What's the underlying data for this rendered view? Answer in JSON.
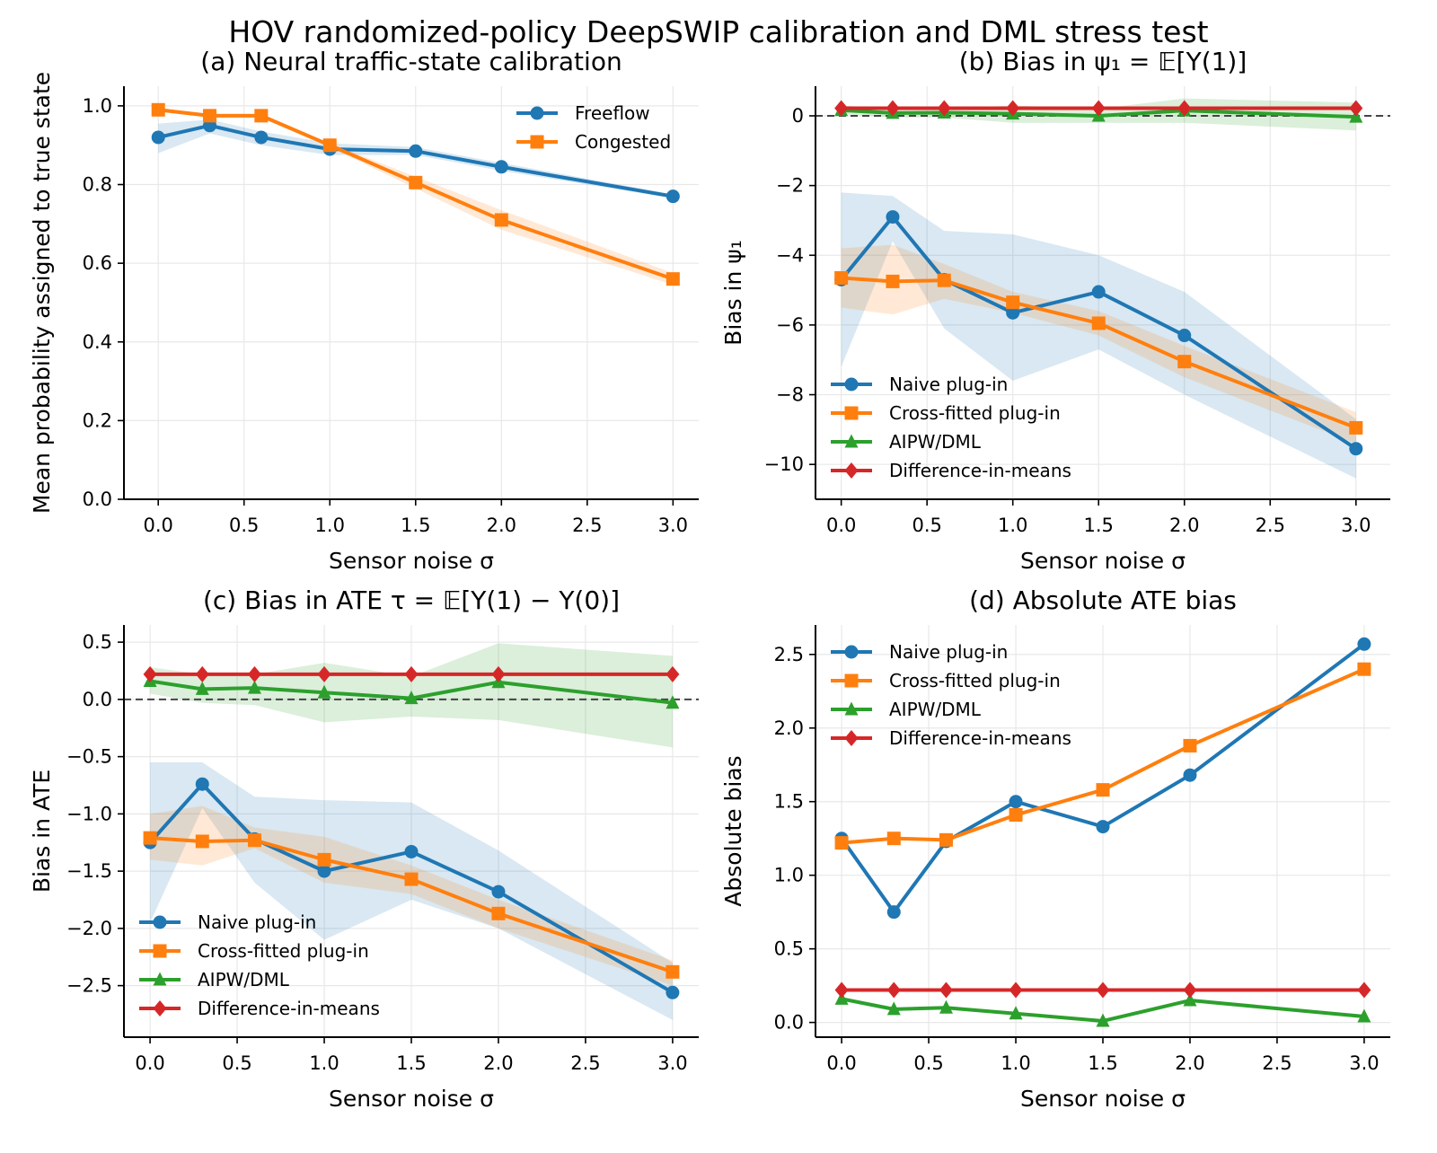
{
  "figure": {
    "suptitle": "HOV randomized-policy DeepSWIP calibration and DML stress test"
  },
  "colors": {
    "freeflow": "#1f77b4",
    "congested": "#ff7f0e",
    "naive": "#1f77b4",
    "crossfit": "#ff7f0e",
    "aipw": "#2ca02c",
    "dim": "#d62728",
    "grid": "#e8e8e8",
    "zero_line": "#444444"
  },
  "chart_data": [
    {
      "id": "a",
      "type": "line",
      "title": "(a) Neural traffic-state calibration",
      "xlabel": "Sensor noise σ",
      "ylabel": "Mean probability assigned to true state",
      "xlim": [
        -0.2,
        3.15
      ],
      "ylim": [
        0.0,
        1.05
      ],
      "xticks": [
        0.0,
        0.5,
        1.0,
        1.5,
        2.0,
        2.5,
        3.0
      ],
      "yticks": [
        0.0,
        0.2,
        0.4,
        0.6,
        0.8,
        1.0
      ],
      "xtick_labels": [
        "0.0",
        "0.5",
        "1.0",
        "1.5",
        "2.0",
        "2.5",
        "3.0"
      ],
      "ytick_labels": [
        "0.0",
        "0.2",
        "0.4",
        "0.6",
        "0.8",
        "1.0"
      ],
      "grid": true,
      "zero_line": false,
      "legend_position": "top-right",
      "x": [
        0.0,
        0.3,
        0.6,
        1.0,
        1.5,
        2.0,
        3.0
      ],
      "series": [
        {
          "name": "Freeflow",
          "color_key": "freeflow",
          "marker": "circle",
          "values": [
            0.92,
            0.95,
            0.92,
            0.89,
            0.885,
            0.845,
            0.77
          ],
          "band_lower": [
            0.88,
            0.93,
            0.9,
            0.875,
            0.875,
            0.835,
            0.765
          ],
          "band_upper": [
            0.955,
            0.965,
            0.935,
            0.905,
            0.895,
            0.855,
            0.775
          ]
        },
        {
          "name": "Congested",
          "color_key": "congested",
          "marker": "square",
          "values": [
            0.99,
            0.975,
            0.975,
            0.9,
            0.805,
            0.71,
            0.56
          ],
          "band_lower": [
            0.985,
            0.97,
            0.97,
            0.895,
            0.79,
            0.685,
            0.545
          ],
          "band_upper": [
            0.995,
            0.98,
            0.98,
            0.905,
            0.82,
            0.735,
            0.575
          ]
        }
      ]
    },
    {
      "id": "b",
      "type": "line",
      "title": "(b) Bias in ψ₁ = 𝔼[Y(1)]",
      "xlabel": "Sensor noise σ",
      "ylabel": "Bias in ψ₁",
      "xlim": [
        -0.15,
        3.2
      ],
      "ylim": [
        -11.0,
        0.85
      ],
      "xticks": [
        0.0,
        0.5,
        1.0,
        1.5,
        2.0,
        2.5,
        3.0
      ],
      "yticks": [
        -10,
        -8,
        -6,
        -4,
        -2,
        0
      ],
      "xtick_labels": [
        "0.0",
        "0.5",
        "1.0",
        "1.5",
        "2.0",
        "2.5",
        "3.0"
      ],
      "ytick_labels": [
        "−10",
        "−8",
        "−6",
        "−4",
        "−2",
        "0"
      ],
      "grid": true,
      "zero_line": true,
      "legend_position": "bottom-left",
      "x": [
        0.0,
        0.3,
        0.6,
        1.0,
        1.5,
        2.0,
        3.0
      ],
      "series": [
        {
          "name": "Naive plug-in",
          "color_key": "naive",
          "marker": "circle",
          "values": [
            -4.7,
            -2.9,
            -4.7,
            -5.65,
            -5.05,
            -6.3,
            -9.55
          ],
          "band_lower": [
            -7.2,
            -3.6,
            -6.1,
            -7.6,
            -6.7,
            -8.0,
            -10.4
          ],
          "band_upper": [
            -2.2,
            -2.3,
            -3.3,
            -3.4,
            -4.0,
            -5.05,
            -8.7
          ]
        },
        {
          "name": "Cross-fitted plug-in",
          "color_key": "crossfit",
          "marker": "square",
          "values": [
            -4.65,
            -4.75,
            -4.72,
            -5.35,
            -5.95,
            -7.05,
            -8.95
          ],
          "band_lower": [
            -5.5,
            -5.7,
            -5.25,
            -5.65,
            -6.3,
            -7.5,
            -9.4
          ],
          "band_upper": [
            -3.8,
            -3.7,
            -4.25,
            -5.05,
            -5.6,
            -6.6,
            -8.5
          ]
        },
        {
          "name": "AIPW/DML",
          "color_key": "aipw",
          "marker": "triangle",
          "values": [
            0.16,
            0.08,
            0.09,
            0.06,
            0.0,
            0.15,
            -0.03
          ],
          "band_lower": [
            0.05,
            -0.05,
            -0.05,
            -0.2,
            -0.2,
            -0.2,
            -0.42
          ],
          "band_upper": [
            0.3,
            0.2,
            0.2,
            0.3,
            0.2,
            0.5,
            0.38
          ]
        },
        {
          "name": "Difference-in-means",
          "color_key": "dim",
          "marker": "diamond",
          "values": [
            0.22,
            0.22,
            0.22,
            0.22,
            0.22,
            0.22,
            0.22
          ]
        }
      ]
    },
    {
      "id": "c",
      "type": "line",
      "title": "(c) Bias in ATE τ = 𝔼[Y(1) − Y(0)]",
      "xlabel": "Sensor noise σ",
      "ylabel": "Bias in ATE",
      "xlim": [
        -0.15,
        3.15
      ],
      "ylim": [
        -2.95,
        0.65
      ],
      "xticks": [
        0.0,
        0.5,
        1.0,
        1.5,
        2.0,
        2.5,
        3.0
      ],
      "yticks": [
        -2.5,
        -2.0,
        -1.5,
        -1.0,
        -0.5,
        0.0,
        0.5
      ],
      "xtick_labels": [
        "0.0",
        "0.5",
        "1.0",
        "1.5",
        "2.0",
        "2.5",
        "3.0"
      ],
      "ytick_labels": [
        "−2.5",
        "−2.0",
        "−1.5",
        "−1.0",
        "−0.5",
        "0.0",
        "0.5"
      ],
      "grid": true,
      "zero_line": true,
      "legend_position": "bottom-left",
      "x": [
        0.0,
        0.3,
        0.6,
        1.0,
        1.5,
        2.0,
        3.0
      ],
      "series": [
        {
          "name": "Naive plug-in",
          "color_key": "naive",
          "marker": "circle",
          "values": [
            -1.25,
            -0.74,
            -1.22,
            -1.5,
            -1.33,
            -1.68,
            -2.56
          ],
          "band_lower": [
            -1.95,
            -0.95,
            -1.6,
            -2.1,
            -1.75,
            -2.0,
            -2.8
          ],
          "band_upper": [
            -0.55,
            -0.55,
            -0.85,
            -0.88,
            -0.9,
            -1.32,
            -2.3
          ]
        },
        {
          "name": "Cross-fitted plug-in",
          "color_key": "crossfit",
          "marker": "square",
          "values": [
            -1.21,
            -1.24,
            -1.23,
            -1.4,
            -1.57,
            -1.87,
            -2.38
          ],
          "band_lower": [
            -1.4,
            -1.45,
            -1.3,
            -1.6,
            -1.7,
            -2.0,
            -2.5
          ],
          "band_upper": [
            -1.0,
            -0.93,
            -1.12,
            -1.2,
            -1.45,
            -1.75,
            -2.28
          ]
        },
        {
          "name": "AIPW/DML",
          "color_key": "aipw",
          "marker": "triangle",
          "values": [
            0.16,
            0.09,
            0.1,
            0.06,
            0.01,
            0.15,
            -0.03
          ],
          "band_lower": [
            0.05,
            -0.03,
            -0.05,
            -0.2,
            -0.15,
            -0.18,
            -0.42
          ],
          "band_upper": [
            0.28,
            0.22,
            0.22,
            0.32,
            0.2,
            0.49,
            0.38
          ]
        },
        {
          "name": "Difference-in-means",
          "color_key": "dim",
          "marker": "diamond",
          "values": [
            0.22,
            0.22,
            0.22,
            0.22,
            0.22,
            0.22,
            0.22
          ]
        }
      ]
    },
    {
      "id": "d",
      "type": "line",
      "title": "(d) Absolute ATE bias",
      "xlabel": "Sensor noise σ",
      "ylabel": "Absolute bias",
      "xlim": [
        -0.15,
        3.15
      ],
      "ylim": [
        -0.1,
        2.7
      ],
      "xticks": [
        0.0,
        0.5,
        1.0,
        1.5,
        2.0,
        2.5,
        3.0
      ],
      "yticks": [
        0.0,
        0.5,
        1.0,
        1.5,
        2.0,
        2.5
      ],
      "xtick_labels": [
        "0.0",
        "0.5",
        "1.0",
        "1.5",
        "2.0",
        "2.5",
        "3.0"
      ],
      "ytick_labels": [
        "0.0",
        "0.5",
        "1.0",
        "1.5",
        "2.0",
        "2.5"
      ],
      "grid": true,
      "zero_line": false,
      "legend_position": "top-left",
      "x": [
        0.0,
        0.3,
        0.6,
        1.0,
        1.5,
        2.0,
        3.0
      ],
      "series": [
        {
          "name": "Naive plug-in",
          "color_key": "naive",
          "marker": "circle",
          "values": [
            1.25,
            0.75,
            1.23,
            1.5,
            1.33,
            1.68,
            2.57
          ]
        },
        {
          "name": "Cross-fitted plug-in",
          "color_key": "crossfit",
          "marker": "square",
          "values": [
            1.22,
            1.25,
            1.24,
            1.41,
            1.58,
            1.88,
            2.4
          ]
        },
        {
          "name": "AIPW/DML",
          "color_key": "aipw",
          "marker": "triangle",
          "values": [
            0.16,
            0.09,
            0.1,
            0.06,
            0.01,
            0.15,
            0.04
          ]
        },
        {
          "name": "Difference-in-means",
          "color_key": "dim",
          "marker": "diamond",
          "values": [
            0.22,
            0.22,
            0.22,
            0.22,
            0.22,
            0.22,
            0.22
          ]
        }
      ]
    }
  ]
}
